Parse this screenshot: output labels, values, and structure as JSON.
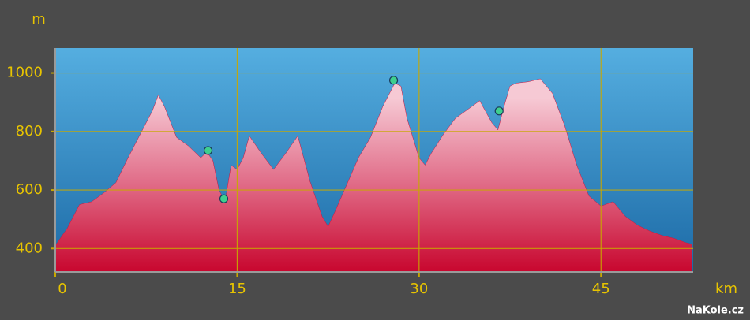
{
  "chart_data": {
    "type": "area",
    "y_label": "m",
    "x_label": "km",
    "watermark": "NaKole.cz",
    "x": [
      0,
      1,
      2,
      3,
      4,
      5,
      6,
      7,
      8,
      8.5,
      9,
      10,
      11,
      12,
      12.5,
      13,
      13.5,
      14,
      14.5,
      15,
      15.5,
      16,
      17,
      18,
      19,
      20,
      21,
      22,
      22.5,
      23,
      24,
      25,
      26,
      27,
      28,
      28.5,
      29,
      30,
      30.5,
      31,
      32,
      33,
      34,
      35,
      36,
      36.5,
      37,
      37.5,
      38,
      39,
      40,
      41,
      42,
      43,
      44,
      45,
      46,
      47,
      48,
      49,
      50,
      51,
      52,
      52.5
    ],
    "values": [
      410,
      470,
      550,
      560,
      590,
      625,
      710,
      790,
      870,
      925,
      885,
      780,
      750,
      710,
      730,
      700,
      600,
      560,
      685,
      670,
      710,
      785,
      725,
      670,
      725,
      785,
      630,
      510,
      475,
      520,
      615,
      710,
      780,
      885,
      965,
      955,
      845,
      710,
      685,
      725,
      790,
      845,
      875,
      905,
      830,
      805,
      885,
      955,
      965,
      970,
      980,
      930,
      820,
      685,
      580,
      545,
      560,
      510,
      480,
      460,
      445,
      435,
      420,
      415
    ],
    "color": "#d0143c",
    "waypoints": {
      "x": [
        12.6,
        13.9,
        27.9,
        36.6
      ],
      "values": [
        735,
        570,
        975,
        870
      ],
      "color": "#3ecf8e"
    },
    "xlim": [
      0,
      52.6
    ],
    "ylim": [
      320,
      1085
    ],
    "xticks": [
      0,
      15,
      30,
      45
    ],
    "yticks": [
      400,
      600,
      800,
      1000
    ],
    "grid": true,
    "grid_color": "#c8a800"
  }
}
